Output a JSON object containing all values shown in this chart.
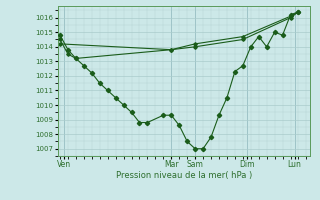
{
  "xlabel": "Pression niveau de la mer( hPa )",
  "bg_color": "#cce8e8",
  "line_color": "#1a5c1a",
  "grid_color": "#aacccc",
  "tick_color": "#2d6e2d",
  "ylim": [
    1006.5,
    1016.8
  ],
  "xlim": [
    -0.3,
    31.5
  ],
  "yticks": [
    1007,
    1008,
    1009,
    1010,
    1011,
    1012,
    1013,
    1014,
    1015,
    1016
  ],
  "day_labels": [
    "Ven",
    "Mar",
    "Sam",
    "Dim",
    "Lun"
  ],
  "day_positions": [
    0.5,
    14,
    17,
    23.5,
    29.5
  ],
  "series1_x": [
    0,
    1,
    2,
    3,
    4,
    5,
    6,
    7,
    8,
    9,
    10,
    11,
    13,
    14,
    15,
    16,
    17,
    18,
    19,
    20,
    21,
    22,
    23,
    24,
    25,
    26,
    27,
    28,
    29,
    30
  ],
  "series1_y": [
    1014.8,
    1013.8,
    1013.2,
    1012.7,
    1012.2,
    1011.5,
    1011.0,
    1010.5,
    1010.0,
    1009.5,
    1008.8,
    1008.8,
    1009.3,
    1009.3,
    1008.6,
    1007.5,
    1007.0,
    1007.0,
    1007.8,
    1009.3,
    1010.5,
    1012.3,
    1012.7,
    1014.0,
    1014.7,
    1014.0,
    1015.0,
    1014.8,
    1016.2,
    1016.4
  ],
  "series2_x": [
    0,
    1,
    2,
    14,
    17,
    23,
    29,
    30
  ],
  "series2_y": [
    1014.5,
    1013.5,
    1013.2,
    1013.8,
    1014.0,
    1014.5,
    1016.0,
    1016.4
  ],
  "series3_x": [
    0,
    14,
    17,
    23,
    29,
    30
  ],
  "series3_y": [
    1014.2,
    1013.8,
    1014.2,
    1014.7,
    1016.1,
    1016.4
  ]
}
